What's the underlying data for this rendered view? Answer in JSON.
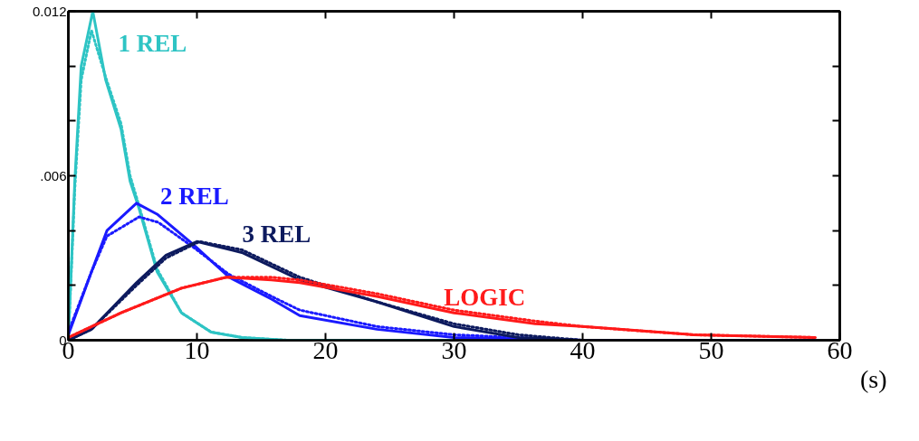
{
  "chart_data": {
    "type": "line",
    "xlabel": "(s)",
    "xlim": [
      0,
      60
    ],
    "xticks": [
      0,
      10,
      20,
      30,
      40,
      50,
      60
    ],
    "ylim": [
      0,
      0.012
    ],
    "yticks": [
      {
        "value": 0,
        "label": "0"
      },
      {
        "value": 0.002,
        "label": null
      },
      {
        "value": 0.004,
        "label": null
      },
      {
        "value": 0.006,
        "label": ".006"
      },
      {
        "value": 0.008,
        "label": null
      },
      {
        "value": 0.01,
        "label": null
      },
      {
        "value": 0.012,
        "label": "0.012"
      }
    ],
    "grid": false,
    "marker": "none",
    "series": [
      {
        "name": "1 REL",
        "color": "#2ec4c4",
        "line_style": "solid",
        "x": [
          0,
          0.5,
          1,
          1.9,
          2.9,
          4.1,
          4.8,
          5.5,
          6.9,
          8.8,
          11.1,
          13.5,
          17,
          22,
          30
        ],
        "values": [
          0,
          0.0058,
          0.01,
          0.012,
          0.0095,
          0.0077,
          0.0058,
          0.0048,
          0.0025,
          0.001,
          0.0003,
          0.0001,
          0,
          0,
          0
        ]
      },
      {
        "color": "#2ec4c4",
        "line_style": "dotted",
        "x": [
          0,
          0.5,
          1,
          1.8,
          2.9,
          4.1,
          4.8,
          5.5,
          6.9,
          8.8,
          11.1,
          13.5,
          17
        ],
        "values": [
          0,
          0.0055,
          0.0095,
          0.0113,
          0.0096,
          0.0079,
          0.006,
          0.0049,
          0.0026,
          0.001,
          0.0003,
          0.0001,
          0
        ]
      },
      {
        "name": "2 REL",
        "color": "#1a1aff",
        "line_style": "solid",
        "x": [
          0,
          1.8,
          3,
          5.3,
          6.9,
          9.7,
          12.5,
          15.8,
          18,
          24,
          30,
          40,
          58
        ],
        "values": [
          0.0002,
          0.0025,
          0.004,
          0.005,
          0.0046,
          0.0035,
          0.0023,
          0.0015,
          0.0009,
          0.0004,
          0.0001,
          0,
          0
        ]
      },
      {
        "color": "#1a1aff",
        "line_style": "dotted",
        "x": [
          0,
          1.8,
          3,
          5.5,
          7,
          9.7,
          12.5,
          15.8,
          18,
          24,
          30,
          40
        ],
        "values": [
          0.0003,
          0.0025,
          0.0038,
          0.0045,
          0.0043,
          0.0034,
          0.0024,
          0.0016,
          0.0011,
          0.0005,
          0.0002,
          0
        ]
      },
      {
        "name": "3 REL",
        "color": "#0d1a5e",
        "line_style": "solid",
        "x": [
          0,
          1.8,
          5.3,
          7.6,
          10,
          13.5,
          18,
          24,
          30,
          35,
          40,
          58
        ],
        "values": [
          0,
          0.0004,
          0.0021,
          0.0031,
          0.0036,
          0.0032,
          0.0022,
          0.0014,
          0.0005,
          0.0001,
          0,
          0
        ]
      },
      {
        "color": "#0d1a5e",
        "line_style": "dotted",
        "x": [
          0,
          1.8,
          5.3,
          7.6,
          10.2,
          13.5,
          18,
          24,
          30,
          35,
          40
        ],
        "values": [
          0,
          0.0004,
          0.002,
          0.003,
          0.0036,
          0.0033,
          0.0023,
          0.0014,
          0.0006,
          0.0002,
          0
        ]
      },
      {
        "name": "LOGIC",
        "color": "#ff1a1a",
        "line_style": "solid",
        "x": [
          0,
          4.1,
          8.8,
          12.3,
          15.8,
          18,
          24,
          30,
          36.3,
          40,
          48.6,
          58.1
        ],
        "values": [
          0.0001,
          0.001,
          0.0019,
          0.0023,
          0.0022,
          0.0021,
          0.0016,
          0.001,
          0.0006,
          0.0005,
          0.0002,
          0.0001
        ]
      },
      {
        "color": "#ff1a1a",
        "line_style": "dotted",
        "x": [
          0,
          4.1,
          8.8,
          12.3,
          15.8,
          18,
          24,
          30,
          36.3,
          40,
          48.6,
          58.1
        ],
        "values": [
          0.0001,
          0.001,
          0.0019,
          0.0023,
          0.0023,
          0.0022,
          0.0017,
          0.0011,
          0.0007,
          0.0005,
          0.0002,
          0.0001
        ]
      }
    ]
  }
}
